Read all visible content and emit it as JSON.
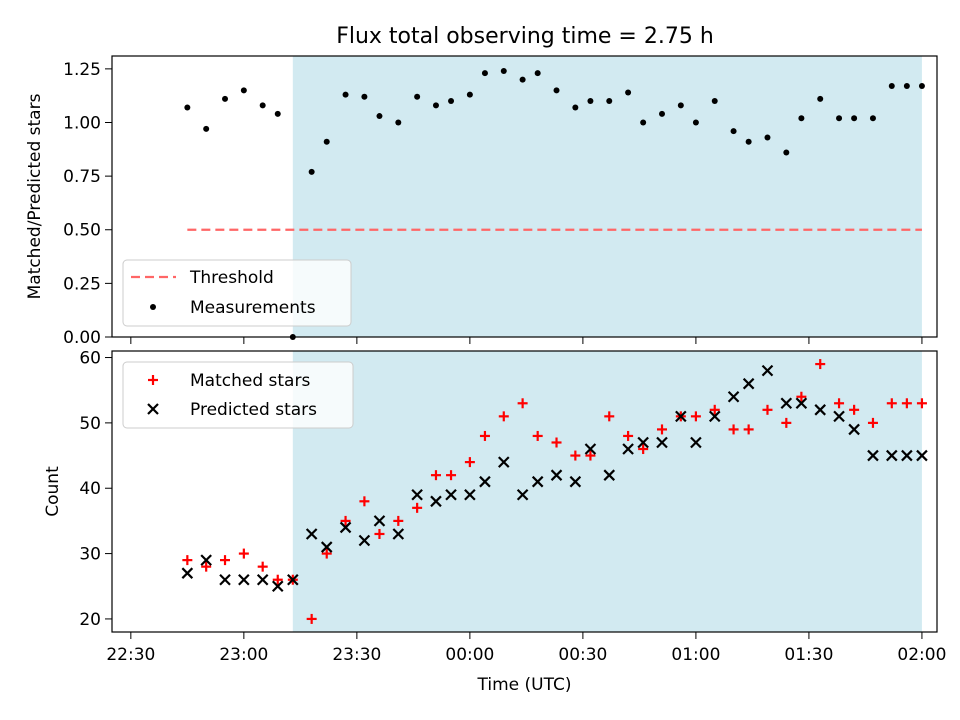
{
  "title": "Flux total observing time = 2.75 h",
  "colors": {
    "shade": "#add8e6",
    "threshold": "#ff6666",
    "measurement": "#000000",
    "matched": "#ff0000",
    "predicted": "#000000"
  },
  "chart_data": [
    {
      "type": "scatter",
      "ylabel": "Matched/Predicted stars",
      "ylim": [
        0,
        1.31
      ],
      "xlim_min": [
        22.5,
        2.15
      ],
      "yticks": [
        0,
        0.25,
        0.5,
        0.75,
        1.0,
        1.25
      ],
      "ytick_labels": [
        "0.00",
        "0.25",
        "0.50",
        "0.75",
        "1.00",
        "1.25"
      ],
      "shaded_span_utc": [
        "23:13",
        "02:00"
      ],
      "threshold": {
        "value": 0.5,
        "x_range_utc": [
          "22:45",
          "02:00"
        ]
      },
      "legend": {
        "placement": "lower-left",
        "entries": [
          "Threshold",
          "Measurements"
        ]
      },
      "series": [
        {
          "name": "Measurements",
          "x_utc": [
            "22:45",
            "22:50",
            "22:55",
            "23:00",
            "23:05",
            "23:09",
            "23:13",
            "23:18",
            "23:22",
            "23:27",
            "23:32",
            "23:36",
            "23:41",
            "23:46",
            "23:51",
            "23:55",
            "00:00",
            "00:04",
            "00:09",
            "00:14",
            "00:18",
            "00:23",
            "00:28",
            "00:32",
            "00:37",
            "00:42",
            "00:46",
            "00:51",
            "00:56",
            "01:00",
            "01:05",
            "01:10",
            "01:14",
            "01:19",
            "01:24",
            "01:28",
            "01:33",
            "01:38",
            "01:42",
            "01:47",
            "01:52",
            "01:56",
            "02:00"
          ],
          "y": [
            1.07,
            0.97,
            1.11,
            1.15,
            1.08,
            1.04,
            0.0,
            0.77,
            0.91,
            1.13,
            1.12,
            1.03,
            1.0,
            1.12,
            1.08,
            1.1,
            1.13,
            1.23,
            1.24,
            1.2,
            1.23,
            1.15,
            1.07,
            1.1,
            1.1,
            1.14,
            1.0,
            1.04,
            1.08,
            1.0,
            1.1,
            0.96,
            0.91,
            0.93,
            0.86,
            1.02,
            1.11,
            1.02,
            1.02,
            1.02,
            1.17,
            1.17,
            1.17
          ]
        }
      ]
    },
    {
      "type": "scatter",
      "xlabel": "Time (UTC)",
      "ylabel": "Count",
      "ylim": [
        18,
        61
      ],
      "yticks": [
        20,
        30,
        40,
        50,
        60
      ],
      "xtick_labels": [
        "22:30",
        "23:00",
        "23:30",
        "00:00",
        "00:30",
        "01:00",
        "01:30",
        "02:00"
      ],
      "shaded_span_utc": [
        "23:13",
        "02:00"
      ],
      "legend": {
        "placement": "upper-left",
        "entries": [
          "Matched stars",
          "Predicted stars"
        ]
      },
      "series": [
        {
          "name": "Matched stars",
          "marker": "plus",
          "x_utc": [
            "22:45",
            "22:50",
            "22:55",
            "23:00",
            "23:05",
            "23:09",
            "23:13",
            "23:18",
            "23:22",
            "23:27",
            "23:32",
            "23:36",
            "23:41",
            "23:46",
            "23:51",
            "23:55",
            "00:00",
            "00:04",
            "00:09",
            "00:14",
            "00:18",
            "00:23",
            "00:28",
            "00:32",
            "00:37",
            "00:42",
            "00:46",
            "00:51",
            "00:56",
            "01:00",
            "01:05",
            "01:10",
            "01:14",
            "01:19",
            "01:24",
            "01:28",
            "01:33",
            "01:38",
            "01:42",
            "01:47",
            "01:52",
            "01:56",
            "02:00"
          ],
          "y": [
            29,
            28,
            29,
            30,
            28,
            26,
            26,
            20,
            30,
            35,
            38,
            33,
            35,
            37,
            42,
            42,
            44,
            48,
            51,
            53,
            48,
            47,
            45,
            45,
            51,
            48,
            46,
            49,
            51,
            51,
            52,
            49,
            49,
            52,
            50,
            54,
            59,
            53,
            52,
            50,
            53,
            53,
            53
          ]
        },
        {
          "name": "Predicted stars",
          "marker": "x",
          "x_utc": [
            "22:45",
            "22:50",
            "22:55",
            "23:00",
            "23:05",
            "23:09",
            "23:13",
            "23:18",
            "23:22",
            "23:27",
            "23:32",
            "23:36",
            "23:41",
            "23:46",
            "23:51",
            "23:55",
            "00:00",
            "00:04",
            "00:09",
            "00:14",
            "00:18",
            "00:23",
            "00:28",
            "00:32",
            "00:37",
            "00:42",
            "00:46",
            "00:51",
            "00:56",
            "01:00",
            "01:05",
            "01:10",
            "01:14",
            "01:19",
            "01:24",
            "01:28",
            "01:33",
            "01:38",
            "01:42",
            "01:47",
            "01:52",
            "01:56",
            "02:00"
          ],
          "y": [
            27,
            29,
            26,
            26,
            26,
            25,
            26,
            33,
            31,
            34,
            32,
            35,
            33,
            39,
            38,
            39,
            39,
            41,
            44,
            39,
            41,
            42,
            41,
            46,
            42,
            46,
            47,
            47,
            51,
            47,
            51,
            54,
            56,
            58,
            53,
            53,
            52,
            51,
            49,
            45,
            45,
            45,
            45
          ]
        }
      ]
    }
  ]
}
